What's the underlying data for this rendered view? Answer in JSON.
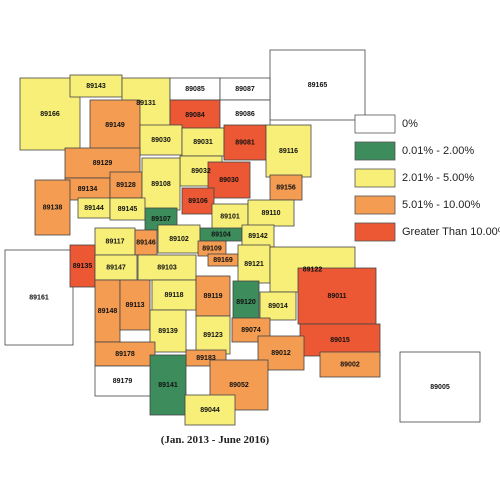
{
  "legend": [
    {
      "label": "0%",
      "color": "#ffffff"
    },
    {
      "label": "0.01% - 2.00%",
      "color": "#3d8c5c"
    },
    {
      "label": "2.01% - 5.00%",
      "color": "#f8ef79"
    },
    {
      "label": "5.01% - 10.00%",
      "color": "#f39c52"
    },
    {
      "label": "Greater Than 10.00%",
      "color": "#ec5834"
    }
  ],
  "zips": [
    {
      "label": "89165",
      "color": "#ffffff"
    },
    {
      "label": "89161",
      "color": "#ffffff"
    },
    {
      "label": "89005",
      "color": "#ffffff"
    },
    {
      "label": "89166",
      "color": "#f8ef79"
    },
    {
      "label": "89143",
      "color": "#f8ef79"
    },
    {
      "label": "89131",
      "color": "#f8ef79"
    },
    {
      "label": "89085",
      "color": "#ffffff"
    },
    {
      "label": "89087",
      "color": "#ffffff"
    },
    {
      "label": "89084",
      "color": "#ec5834"
    },
    {
      "label": "89086",
      "color": "#ffffff"
    },
    {
      "label": "89149",
      "color": "#f39c52"
    },
    {
      "label": "89030",
      "color": "#f8ef79"
    },
    {
      "label": "89031",
      "color": "#f8ef79"
    },
    {
      "label": "89081",
      "color": "#ec5834"
    },
    {
      "label": "89116",
      "color": "#f8ef79"
    },
    {
      "label": "89129",
      "color": "#f39c52"
    },
    {
      "label": "89032",
      "color": "#f8ef79"
    },
    {
      "label": "89030",
      "color": "#ec5834"
    },
    {
      "label": "89134",
      "color": "#f39c52"
    },
    {
      "label": "89128",
      "color": "#f39c52"
    },
    {
      "label": "89108",
      "color": "#f8ef79"
    },
    {
      "label": "89156",
      "color": "#f39c52"
    },
    {
      "label": "89138",
      "color": "#f39c52"
    },
    {
      "label": "89144",
      "color": "#f8ef79"
    },
    {
      "label": "89145",
      "color": "#f8ef79"
    },
    {
      "label": "89107",
      "color": "#3d8c5c"
    },
    {
      "label": "89106",
      "color": "#ec5834"
    },
    {
      "label": "89101",
      "color": "#f8ef79"
    },
    {
      "label": "89110",
      "color": "#f8ef79"
    },
    {
      "label": "89117",
      "color": "#f8ef79"
    },
    {
      "label": "89146",
      "color": "#f39c52"
    },
    {
      "label": "89102",
      "color": "#f8ef79"
    },
    {
      "label": "89104",
      "color": "#3d8c5c"
    },
    {
      "label": "89142",
      "color": "#f8ef79"
    },
    {
      "label": "89135",
      "color": "#ec5834"
    },
    {
      "label": "89109",
      "color": "#f39c52"
    },
    {
      "label": "89169",
      "color": "#f39c52"
    },
    {
      "label": "89121",
      "color": "#f8ef79"
    },
    {
      "label": "89122",
      "color": "#f8ef79"
    },
    {
      "label": "89147",
      "color": "#f8ef79"
    },
    {
      "label": "89103",
      "color": "#f8ef79"
    },
    {
      "label": "89120",
      "color": "#3d8c5c"
    },
    {
      "label": "89148",
      "color": "#f39c52"
    },
    {
      "label": "89113",
      "color": "#f39c52"
    },
    {
      "label": "89118",
      "color": "#f8ef79"
    },
    {
      "label": "89119",
      "color": "#f39c52"
    },
    {
      "label": "89011",
      "color": "#ec5834"
    },
    {
      "label": "89014",
      "color": "#f8ef79"
    },
    {
      "label": "89139",
      "color": "#f8ef79"
    },
    {
      "label": "89123",
      "color": "#f8ef79"
    },
    {
      "label": "89074",
      "color": "#f39c52"
    },
    {
      "label": "89015",
      "color": "#ec5834"
    },
    {
      "label": "89012",
      "color": "#f39c52"
    },
    {
      "label": "89002",
      "color": "#f39c52"
    },
    {
      "label": "89178",
      "color": "#f39c52"
    },
    {
      "label": "89183",
      "color": "#f39c52"
    },
    {
      "label": "89141",
      "color": "#3d8c5c"
    },
    {
      "label": "89052",
      "color": "#f39c52"
    },
    {
      "label": "89179",
      "color": "#ffffff"
    },
    {
      "label": "89044",
      "color": "#f8ef79"
    }
  ],
  "caption": "(Jan. 2013 - June 2016)"
}
